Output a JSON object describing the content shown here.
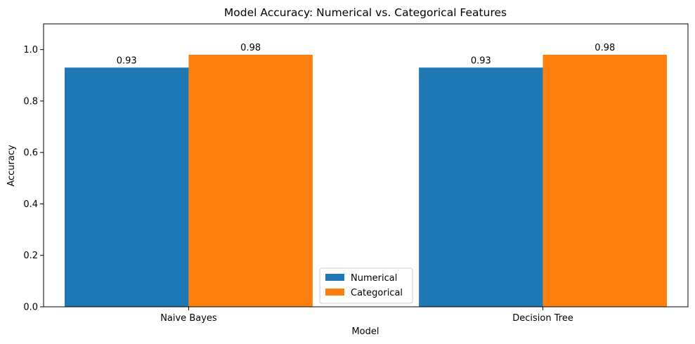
{
  "chart_data": {
    "type": "bar",
    "title": "Model Accuracy: Numerical vs. Categorical Features",
    "xlabel": "Model",
    "ylabel": "Accuracy",
    "categories": [
      "Naive Bayes",
      "Decision Tree"
    ],
    "series": [
      {
        "name": "Numerical",
        "values": [
          0.93,
          0.93
        ],
        "labels": [
          "0.93",
          "0.93"
        ],
        "color": "#1f77b4"
      },
      {
        "name": "Categorical",
        "values": [
          0.98,
          0.98
        ],
        "labels": [
          "0.98",
          "0.98"
        ],
        "color": "#ff7f0e"
      }
    ],
    "ylim": [
      0,
      1.1
    ],
    "yticks": [
      0.0,
      0.2,
      0.4,
      0.6,
      0.8,
      1.0
    ],
    "ytick_labels": [
      "0.0",
      "0.2",
      "0.4",
      "0.6",
      "0.8",
      "1.0"
    ],
    "grid": false,
    "legend_position": "bottom-center"
  }
}
